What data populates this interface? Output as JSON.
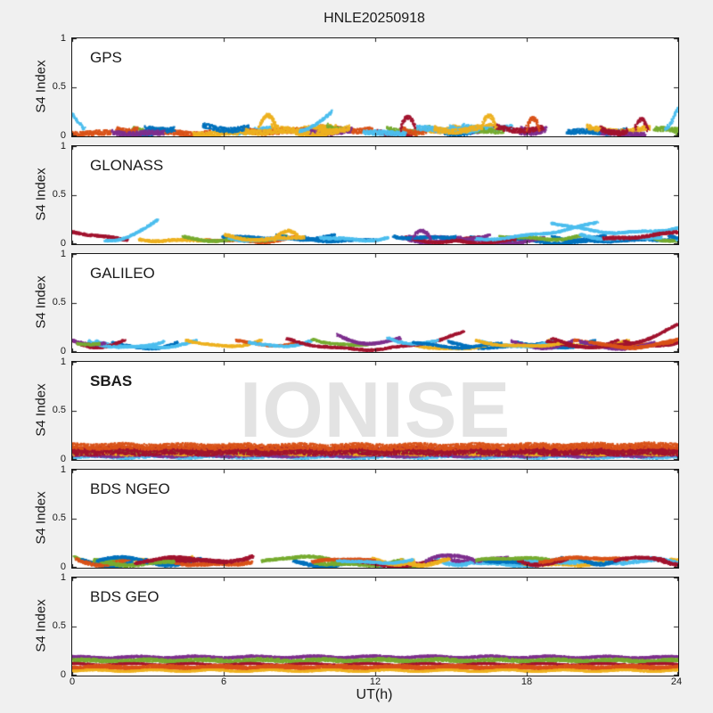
{
  "figure": {
    "title": "HNLE20250918",
    "background": "#f0f0f0"
  },
  "chart_data": {
    "type": "scatter",
    "title": "HNLE20250918",
    "xlabel": "UT(h)",
    "ylabel": "S4 Index",
    "xlim": [
      0,
      24
    ],
    "ylim": [
      0,
      1
    ],
    "xticks": [
      0,
      6,
      12,
      18,
      24
    ],
    "xtick_labels": [
      "0",
      "6",
      "12",
      "18",
      "24"
    ],
    "yticks": [
      0,
      0.5,
      1
    ],
    "ytick_labels": [
      "0",
      "0.5",
      "1"
    ],
    "grid": false,
    "legend": "none",
    "axis_color": "#1a1a1a",
    "plot_bg": "#ffffff",
    "palette": [
      "#0072BD",
      "#D95319",
      "#EDB120",
      "#7E2F8E",
      "#77AC30",
      "#4DBEEE",
      "#A2142F"
    ],
    "watermark": {
      "text": "IONISE",
      "color": "#e3e3e3",
      "panel": "SBAS"
    },
    "description": "S4 scintillation index vs universal time for six GNSS constellations; each colored trace is one satellite pass, values mostly 0-0.3",
    "panels": [
      {
        "label": "GPS",
        "bold": false,
        "seed": 11,
        "noise": {
          "n": 40,
          "len": [
            0.8,
            2.6
          ],
          "base": [
            0.015,
            0.08
          ],
          "jitter": 0.026,
          "arc": 0.01,
          "wig": 0.012
        },
        "features": [
          {
            "c": 5,
            "t0": 0.0,
            "t1": 0.5,
            "y0": 0.24,
            "ym": 0.14,
            "y1": 0.07,
            "j": 0.015
          },
          {
            "c": 2,
            "t0": 7.4,
            "t1": 8.1,
            "y0": 0.08,
            "ym": 0.21,
            "y1": 0.09,
            "j": 0.02
          },
          {
            "c": 5,
            "t0": 9.0,
            "t1": 10.3,
            "y0": 0.06,
            "ym": 0.12,
            "y1": 0.25,
            "j": 0.012
          },
          {
            "c": 6,
            "t0": 13.0,
            "t1": 13.6,
            "y0": 0.07,
            "ym": 0.19,
            "y1": 0.07,
            "j": 0.02
          },
          {
            "c": 2,
            "t0": 16.2,
            "t1": 16.8,
            "y0": 0.08,
            "ym": 0.22,
            "y1": 0.08,
            "j": 0.02
          },
          {
            "c": 1,
            "t0": 18.0,
            "t1": 18.5,
            "y0": 0.07,
            "ym": 0.18,
            "y1": 0.07,
            "j": 0.02
          },
          {
            "c": 6,
            "t0": 22.3,
            "t1": 22.8,
            "y0": 0.07,
            "ym": 0.17,
            "y1": 0.07,
            "j": 0.02
          },
          {
            "c": 5,
            "t0": 23.5,
            "t1": 24.0,
            "y0": 0.07,
            "ym": 0.15,
            "y1": 0.29,
            "j": 0.015
          }
        ]
      },
      {
        "label": "GLONASS",
        "bold": false,
        "seed": 22,
        "noise": {
          "n": 24,
          "len": [
            2.0,
            4.5
          ],
          "base": [
            0.015,
            0.07
          ],
          "jitter": 0.012,
          "arc": 0.02,
          "wig": 0.012
        },
        "features": [
          {
            "c": 6,
            "t0": 0.0,
            "t1": 2.2,
            "y0": 0.13,
            "ym": 0.08,
            "y1": 0.04,
            "j": 0.012
          },
          {
            "c": 5,
            "t0": 1.3,
            "t1": 3.4,
            "y0": 0.04,
            "ym": 0.09,
            "y1": 0.25,
            "j": 0.01
          },
          {
            "c": 2,
            "t0": 8.0,
            "t1": 9.0,
            "y0": 0.05,
            "ym": 0.13,
            "y1": 0.06,
            "j": 0.015
          },
          {
            "c": 3,
            "t0": 13.5,
            "t1": 14.2,
            "y0": 0.06,
            "ym": 0.14,
            "y1": 0.06,
            "j": 0.015
          },
          {
            "c": 5,
            "t0": 16.0,
            "t1": 20.8,
            "y0": 0.05,
            "ym": 0.1,
            "y1": 0.22,
            "j": 0.01
          },
          {
            "c": 5,
            "t0": 19.0,
            "t1": 24.0,
            "y0": 0.22,
            "ym": 0.12,
            "y1": 0.17,
            "j": 0.01
          },
          {
            "c": 6,
            "t0": 21.0,
            "t1": 24.0,
            "y0": 0.05,
            "ym": 0.08,
            "y1": 0.12,
            "j": 0.014
          }
        ]
      },
      {
        "label": "GALILEO",
        "bold": false,
        "seed": 33,
        "noise": {
          "n": 14,
          "len": [
            2.0,
            4.0
          ],
          "base": [
            0.025,
            0.06
          ],
          "jitter": 0.01,
          "arc": 0.05,
          "wig": 0.008
        },
        "features": [
          {
            "c": 3,
            "t0": 0.0,
            "t1": 1.3,
            "y0": 0.11,
            "ym": 0.08,
            "y1": 0.1,
            "j": 0.012
          },
          {
            "c": 4,
            "t0": 0.2,
            "t1": 1.1,
            "y0": 0.09,
            "ym": 0.07,
            "y1": 0.08,
            "j": 0.01
          },
          {
            "c": 2,
            "t0": 4.5,
            "t1": 7.5,
            "y0": 0.13,
            "ym": 0.06,
            "y1": 0.12,
            "j": 0.01
          },
          {
            "c": 1,
            "t0": 6.5,
            "t1": 9.0,
            "y0": 0.12,
            "ym": 0.07,
            "y1": 0.1,
            "j": 0.01
          },
          {
            "c": 5,
            "t0": 7.0,
            "t1": 9.5,
            "y0": 0.1,
            "ym": 0.06,
            "y1": 0.12,
            "j": 0.01
          },
          {
            "c": 6,
            "t0": 8.5,
            "t1": 15.5,
            "y0": 0.13,
            "ym": 0.03,
            "y1": 0.2,
            "j": 0.01
          },
          {
            "c": 4,
            "t0": 9.5,
            "t1": 12.0,
            "y0": 0.14,
            "ym": 0.07,
            "y1": 0.1,
            "j": 0.01
          },
          {
            "c": 3,
            "t0": 10.5,
            "t1": 13.0,
            "y0": 0.17,
            "ym": 0.09,
            "y1": 0.14,
            "j": 0.012
          },
          {
            "c": 5,
            "t0": 12.5,
            "t1": 14.5,
            "y0": 0.14,
            "ym": 0.09,
            "y1": 0.11,
            "j": 0.01
          },
          {
            "c": 0,
            "t0": 13.5,
            "t1": 17.0,
            "y0": 0.1,
            "ym": 0.05,
            "y1": 0.09,
            "j": 0.01
          },
          {
            "c": 2,
            "t0": 16.0,
            "t1": 19.5,
            "y0": 0.12,
            "ym": 0.06,
            "y1": 0.1,
            "j": 0.01
          },
          {
            "c": 6,
            "t0": 19.0,
            "t1": 24.0,
            "y0": 0.13,
            "ym": 0.06,
            "y1": 0.28,
            "j": 0.01
          },
          {
            "c": 1,
            "t0": 20.5,
            "t1": 24.0,
            "y0": 0.1,
            "ym": 0.05,
            "y1": 0.13,
            "j": 0.012
          }
        ]
      },
      {
        "label": "SBAS",
        "bold": true,
        "seed": 44,
        "noise": null,
        "features": [
          {
            "c": 5,
            "t0": 0,
            "t1": 24,
            "y0": 0.035,
            "ym": 0.035,
            "y1": 0.035,
            "j": 0.018
          },
          {
            "c": 0,
            "t0": 0,
            "t1": 24,
            "y0": 0.06,
            "ym": 0.06,
            "y1": 0.06,
            "j": 0.02
          },
          {
            "c": 3,
            "t0": 0,
            "t1": 24,
            "y0": 0.05,
            "ym": 0.05,
            "y1": 0.05,
            "j": 0.02
          },
          {
            "c": 2,
            "t0": 0,
            "t1": 24,
            "y0": 0.07,
            "ym": 0.07,
            "y1": 0.07,
            "j": 0.02
          },
          {
            "c": 4,
            "t0": 0,
            "t1": 24,
            "y0": 0.095,
            "ym": 0.1,
            "y1": 0.095,
            "j": 0.022
          },
          {
            "c": 6,
            "t0": 0,
            "t1": 24,
            "y0": 0.08,
            "ym": 0.08,
            "y1": 0.08,
            "j": 0.03
          },
          {
            "c": 6,
            "t0": 0,
            "t1": 24,
            "y0": 0.115,
            "ym": 0.11,
            "y1": 0.115,
            "j": 0.022
          },
          {
            "c": 1,
            "t0": 0,
            "t1": 24,
            "y0": 0.14,
            "ym": 0.135,
            "y1": 0.145,
            "j": 0.03
          }
        ]
      },
      {
        "label": "BDS NGEO",
        "bold": false,
        "seed": 55,
        "noise": {
          "n": 28,
          "len": [
            1.5,
            3.5
          ],
          "base": [
            0.015,
            0.07
          ],
          "jitter": 0.016,
          "arc": 0.03,
          "wig": 0.012
        },
        "features": [
          {
            "c": 0,
            "t0": 1.0,
            "t1": 3.0,
            "y0": 0.08,
            "ym": 0.1,
            "y1": 0.06,
            "j": 0.012
          },
          {
            "c": 6,
            "t0": 2.5,
            "t1": 6.0,
            "y0": 0.05,
            "ym": 0.1,
            "y1": 0.05,
            "j": 0.012
          },
          {
            "c": 4,
            "t0": 7.5,
            "t1": 10.5,
            "y0": 0.06,
            "ym": 0.11,
            "y1": 0.07,
            "j": 0.012
          },
          {
            "c": 1,
            "t0": 9.5,
            "t1": 12.0,
            "y0": 0.05,
            "ym": 0.09,
            "y1": 0.06,
            "j": 0.012
          },
          {
            "c": 5,
            "t0": 10.5,
            "t1": 13.5,
            "y0": 0.08,
            "ym": 0.05,
            "y1": 0.08,
            "j": 0.01
          },
          {
            "c": 3,
            "t0": 14.0,
            "t1": 16.0,
            "y0": 0.06,
            "ym": 0.13,
            "y1": 0.07,
            "j": 0.012
          },
          {
            "c": 4,
            "t0": 16.0,
            "t1": 19.0,
            "y0": 0.07,
            "ym": 0.1,
            "y1": 0.07,
            "j": 0.012
          },
          {
            "c": 1,
            "t0": 18.5,
            "t1": 22.0,
            "y0": 0.06,
            "ym": 0.1,
            "y1": 0.08,
            "j": 0.012
          },
          {
            "c": 6,
            "t0": 21.5,
            "t1": 23.5,
            "y0": 0.06,
            "ym": 0.11,
            "y1": 0.07,
            "j": 0.012
          }
        ]
      },
      {
        "label": "BDS GEO",
        "bold": false,
        "seed": 66,
        "noise": null,
        "features": [
          {
            "c": 3,
            "t0": 0,
            "t1": 24,
            "y0": 0.185,
            "ym": 0.19,
            "y1": 0.185,
            "j": 0.01
          },
          {
            "c": 4,
            "t0": 0,
            "t1": 24,
            "y0": 0.15,
            "ym": 0.155,
            "y1": 0.15,
            "j": 0.018
          },
          {
            "c": 6,
            "t0": 0,
            "t1": 24,
            "y0": 0.115,
            "ym": 0.115,
            "y1": 0.115,
            "j": 0.006
          },
          {
            "c": 1,
            "t0": 0,
            "t1": 24,
            "y0": 0.09,
            "ym": 0.09,
            "y1": 0.09,
            "j": 0.014
          },
          {
            "c": 1,
            "t0": 0,
            "t1": 24,
            "y0": 0.07,
            "ym": 0.07,
            "y1": 0.07,
            "j": 0.008
          },
          {
            "c": 2,
            "t0": 0,
            "t1": 24,
            "y0": 0.05,
            "ym": 0.05,
            "y1": 0.05,
            "j": 0.006
          }
        ]
      }
    ]
  }
}
